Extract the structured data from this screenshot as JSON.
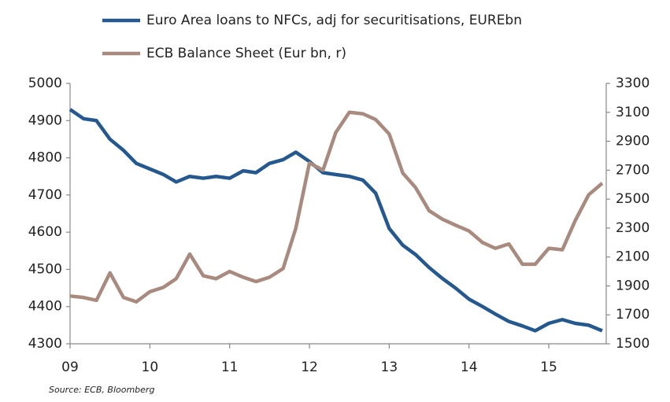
{
  "chart_data": {
    "type": "line",
    "source": "Source: ECB, Bloomberg",
    "x": [
      9,
      9.17,
      9.33,
      9.5,
      9.67,
      9.83,
      10,
      10.17,
      10.33,
      10.5,
      10.67,
      10.83,
      11,
      11.17,
      11.33,
      11.5,
      11.67,
      11.83,
      12,
      12.17,
      12.33,
      12.5,
      12.67,
      12.83,
      13,
      13.17,
      13.33,
      13.5,
      13.67,
      13.83,
      14,
      14.17,
      14.33,
      14.5,
      14.67,
      14.83,
      15,
      15.17,
      15.33,
      15.5,
      15.67
    ],
    "series": [
      {
        "name": "Euro Area  loans to NFCs, adj for securitisations, EUREbn",
        "color": "#24588f",
        "axis": "y",
        "values": [
          4930,
          4905,
          4900,
          4850,
          4820,
          4785,
          4770,
          4755,
          4735,
          4750,
          4745,
          4750,
          4745,
          4765,
          4760,
          4785,
          4795,
          4815,
          4790,
          4760,
          4755,
          4750,
          4740,
          4705,
          4610,
          4565,
          4540,
          4505,
          4475,
          4450,
          4420,
          4400,
          4380,
          4360,
          4348,
          4335,
          4355,
          4365,
          4355,
          4350,
          4335
        ]
      },
      {
        "name": "ECB Balance Sheet (Eur bn, r)",
        "color": "#a98a7e",
        "axis": "y2",
        "values": [
          1830,
          1820,
          1800,
          1990,
          1820,
          1790,
          1860,
          1890,
          1950,
          2120,
          1970,
          1950,
          2000,
          1960,
          1930,
          1960,
          2020,
          2300,
          2750,
          2700,
          2960,
          3100,
          3090,
          3050,
          2950,
          2680,
          2580,
          2420,
          2360,
          2320,
          2280,
          2200,
          2160,
          2190,
          2050,
          2050,
          2160,
          2150,
          2350,
          2530,
          2610
        ]
      }
    ],
    "xlim": [
      9,
      15.72
    ],
    "xticks": [
      {
        "value": 9,
        "label": "09"
      },
      10,
      11,
      12,
      13,
      14,
      15
    ],
    "ylim": [
      4300,
      5000
    ],
    "yticks": [
      4300,
      4400,
      4500,
      4600,
      4700,
      4800,
      4900,
      5000
    ],
    "y2lim": [
      1500,
      3300
    ],
    "y2ticks": [
      1500,
      1700,
      1900,
      2100,
      2300,
      2500,
      2700,
      2900,
      3100,
      3300
    ],
    "legend": "top"
  }
}
